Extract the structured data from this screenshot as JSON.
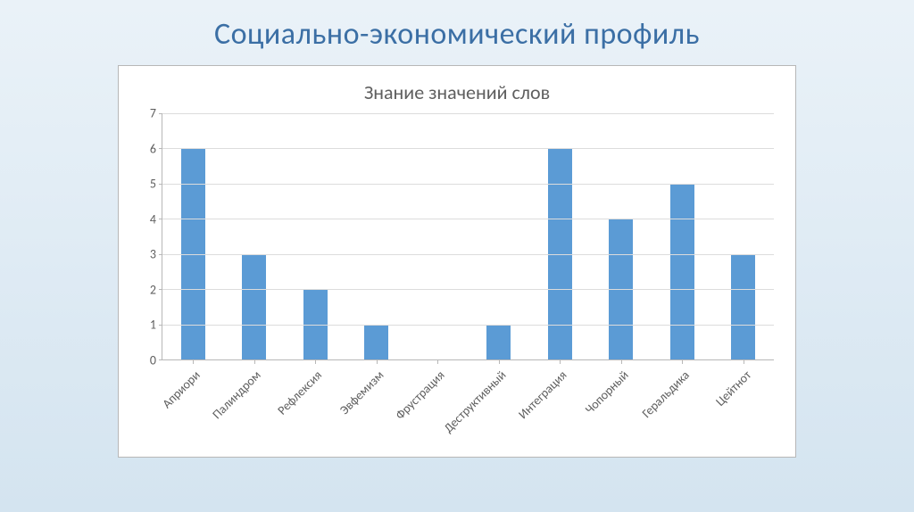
{
  "page_title": "Социально-экономический профиль",
  "chart": {
    "type": "bar",
    "title": "Знание значений слов",
    "categories": [
      "Априори",
      "Палиндром",
      "Рефлексия",
      "Эвфемизм",
      "Фрустрация",
      "Деструктивный",
      "Интеграция",
      "Чопорный",
      "Геральдика",
      "Цейтнот"
    ],
    "values": [
      6,
      3,
      2,
      1,
      0,
      1,
      6,
      4,
      5,
      3
    ],
    "bar_color": "#5b9bd5",
    "background_color": "#ffffff",
    "grid_color": "#dcdcdc",
    "axis_color": "#b7b7b7",
    "text_color": "#5f5f5f",
    "title_fontsize": 22,
    "label_fontsize": 14,
    "ylim": [
      0,
      7
    ],
    "ytick_step": 1,
    "bar_width": 0.4,
    "xlabel_rotation": -45
  }
}
